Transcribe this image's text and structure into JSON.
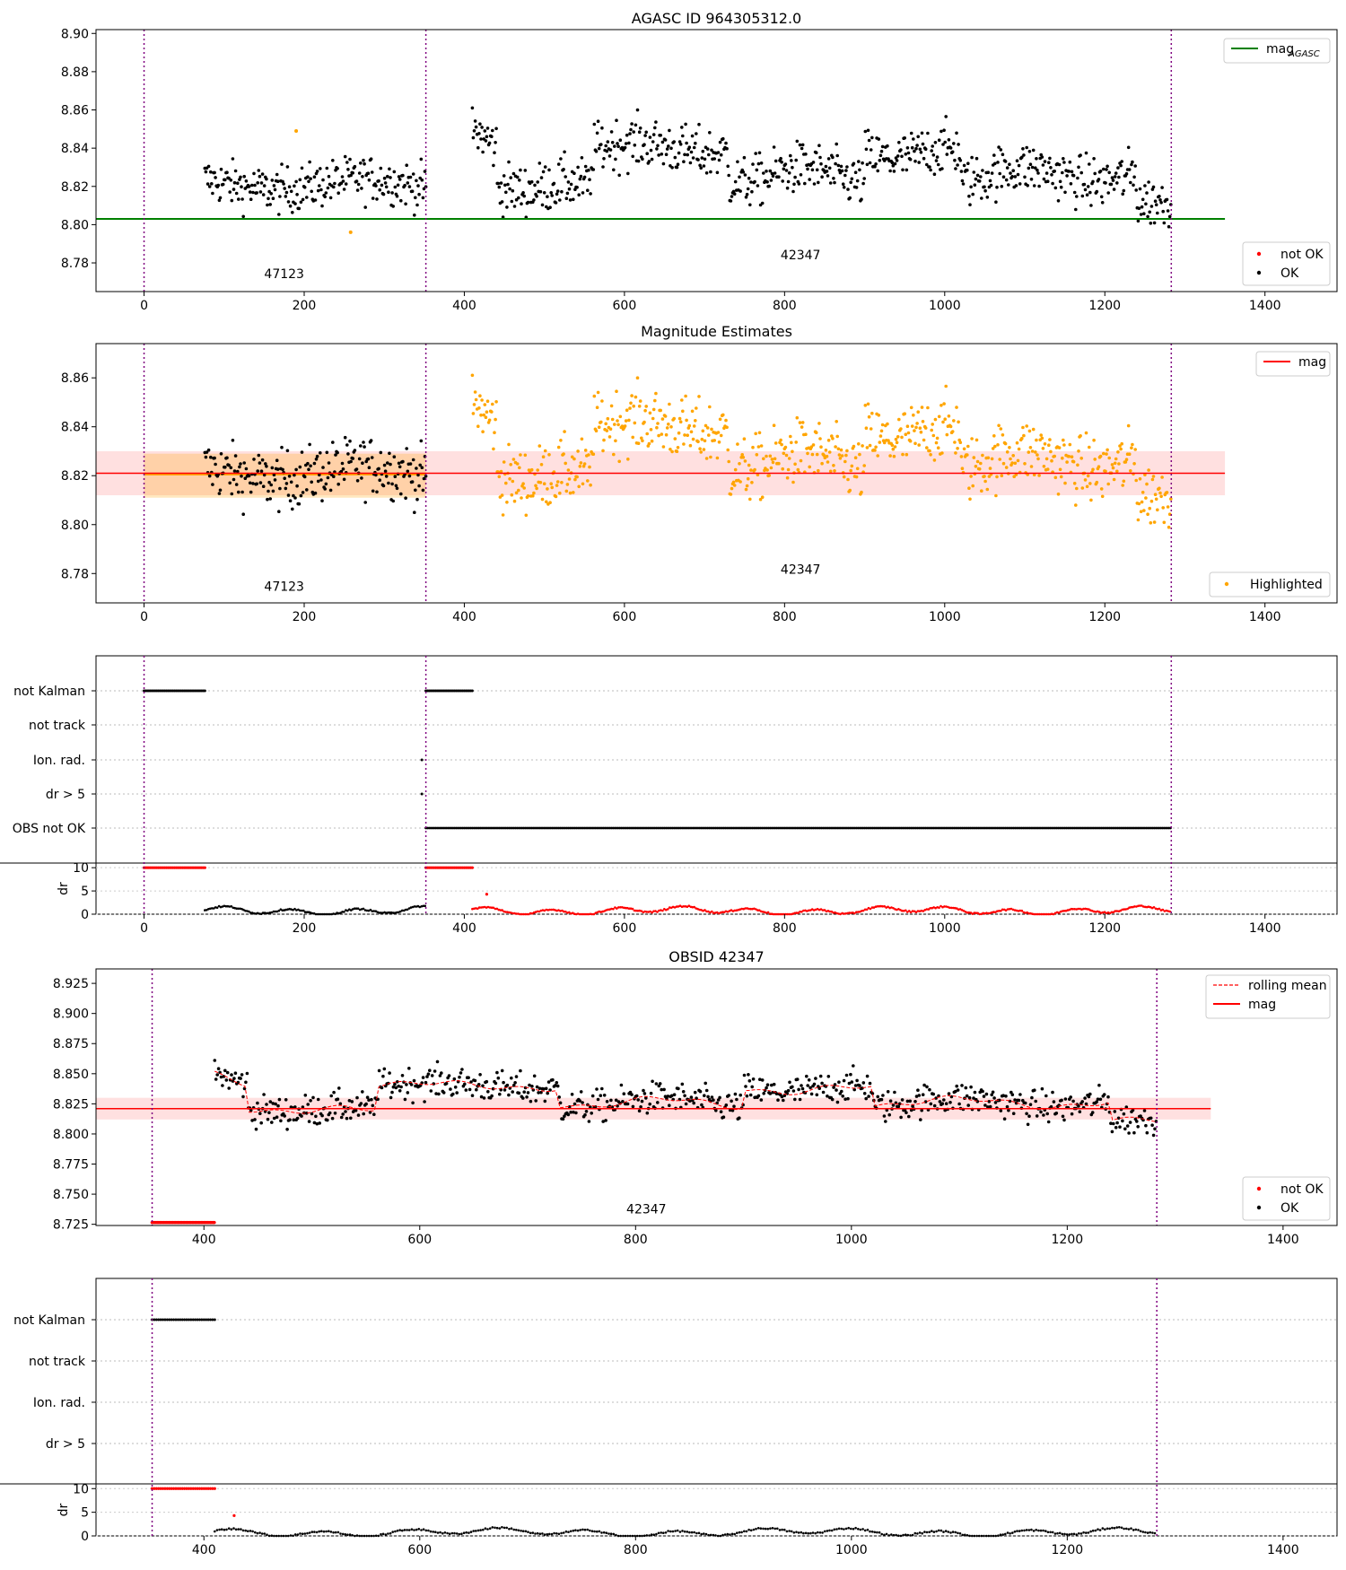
{
  "panels": {
    "p1": {
      "title": "AGASC ID 964305312.0",
      "xlim": [
        -60,
        1490
      ],
      "ylim": [
        8.765,
        8.902
      ],
      "xticks": [
        "0",
        "200",
        "400",
        "600",
        "800",
        "1000",
        "1200",
        "1400"
      ],
      "yticks": [
        "8.78",
        "8.80",
        "8.82",
        "8.84",
        "8.86",
        "8.88",
        "8.90"
      ],
      "obsid_labels": [
        {
          "text": "47123",
          "x": 175,
          "y": 8.772
        },
        {
          "text": "42347",
          "x": 820,
          "y": 8.782
        }
      ],
      "legend_upper": {
        "label": "mag",
        "subscript": "AGASC",
        "color": "#008000"
      },
      "legend_lower": [
        {
          "label": "not OK",
          "color": "#ff0000"
        },
        {
          "label": "OK",
          "color": "#000000"
        }
      ],
      "agasc_mag": 8.803,
      "line_x_range": [
        -60,
        1350
      ]
    },
    "p2": {
      "title": "Magnitude Estimates",
      "xlim": [
        -60,
        1490
      ],
      "ylim": [
        8.768,
        8.874
      ],
      "xticks": [
        "0",
        "200",
        "400",
        "600",
        "800",
        "1000",
        "1200",
        "1400"
      ],
      "yticks": [
        "8.78",
        "8.80",
        "8.82",
        "8.84",
        "8.86"
      ],
      "obsid_labels": [
        {
          "text": "47123",
          "x": 175,
          "y": 8.773
        },
        {
          "text": "42347",
          "x": 820,
          "y": 8.78
        }
      ],
      "legend_upper": {
        "label": "mag",
        "color": "#ff0000"
      },
      "legend_lower": [
        {
          "label": "Highlighted",
          "color": "#ffa500"
        }
      ],
      "mean_mag": 8.821,
      "band": [
        8.812,
        8.83
      ],
      "obs1_band": [
        8.811,
        8.829
      ],
      "obs1_mean": 8.8205
    },
    "p3": {
      "xlim": [
        -60,
        1490
      ],
      "xticks": [
        "0",
        "200",
        "400",
        "600",
        "800",
        "1000",
        "1200",
        "1400"
      ],
      "flag_labels": [
        "not Kalman",
        "not track",
        "Ion. rad.",
        "dr > 5",
        "OBS not OK"
      ],
      "dr_label": "dr",
      "dr_ticks": [
        "0",
        "5",
        "10"
      ]
    },
    "p4": {
      "title": "OBSID 42347",
      "xlim": [
        300,
        1450
      ],
      "ylim": [
        8.724,
        8.937
      ],
      "xticks": [
        "400",
        "600",
        "800",
        "1000",
        "1200",
        "1400"
      ],
      "yticks": [
        "8.725",
        "8.750",
        "8.775",
        "8.800",
        "8.825",
        "8.850",
        "8.875",
        "8.900",
        "8.925"
      ],
      "obsid_labels": [
        {
          "text": "42347",
          "x": 810,
          "y": 8.734
        }
      ],
      "legend_upper": [
        {
          "label": "rolling mean",
          "color": "#ff0000",
          "dashed": true
        },
        {
          "label": "mag",
          "color": "#ff0000",
          "dashed": false
        }
      ],
      "legend_lower": [
        {
          "label": "not OK",
          "color": "#ff0000"
        },
        {
          "label": "OK",
          "color": "#000000"
        }
      ],
      "mean_mag": 8.821,
      "band": [
        8.812,
        8.83
      ]
    },
    "p5": {
      "xlim": [
        300,
        1450
      ],
      "xticks": [
        "400",
        "600",
        "800",
        "1000",
        "1200",
        "1400"
      ],
      "flag_labels": [
        "not Kalman",
        "not track",
        "Ion. rad.",
        "dr > 5"
      ],
      "dr_label": "dr",
      "dr_ticks": [
        "0",
        "5",
        "10"
      ]
    }
  },
  "chart_data": [
    {
      "type": "scatter",
      "title": "AGASC ID 964305312.0",
      "ylim": [
        8.765,
        8.902
      ],
      "series": [
        {
          "name": "OK",
          "color": "#000000"
        },
        {
          "name": "not OK",
          "color": "#ff0000"
        }
      ],
      "obs_boundaries": [
        0,
        352,
        1283
      ],
      "agasc_mag": 8.803
    },
    {
      "type": "scatter",
      "title": "Magnitude Estimates",
      "mag": 8.821,
      "band": [
        8.812,
        8.83
      ],
      "series": [
        {
          "name": "Highlighted",
          "color": "#ffa500",
          "x_range": [
            410,
            1283
          ]
        }
      ]
    },
    {
      "type": "scatter",
      "flags": [
        "not Kalman",
        "not track",
        "Ion. rad.",
        "dr > 5",
        "OBS not OK"
      ],
      "not_kalman_ranges": [
        [
          0,
          76
        ],
        [
          352,
          410
        ]
      ],
      "obs_not_ok_range": [
        352,
        1283
      ],
      "dr_ylim": [
        0,
        10
      ]
    },
    {
      "type": "line",
      "title": "OBSID 42347",
      "mag": 8.821,
      "band": [
        8.812,
        8.83
      ],
      "series": [
        {
          "name": "rolling mean"
        },
        {
          "name": "mag",
          "value": 8.821
        }
      ],
      "not_ok_range": [
        352,
        410
      ]
    },
    {
      "type": "scatter",
      "flags": [
        "not Kalman",
        "not track",
        "Ion. rad.",
        "dr > 5"
      ],
      "not_kalman_range": [
        352,
        410
      ],
      "dr_ylim": [
        0,
        10
      ]
    }
  ]
}
